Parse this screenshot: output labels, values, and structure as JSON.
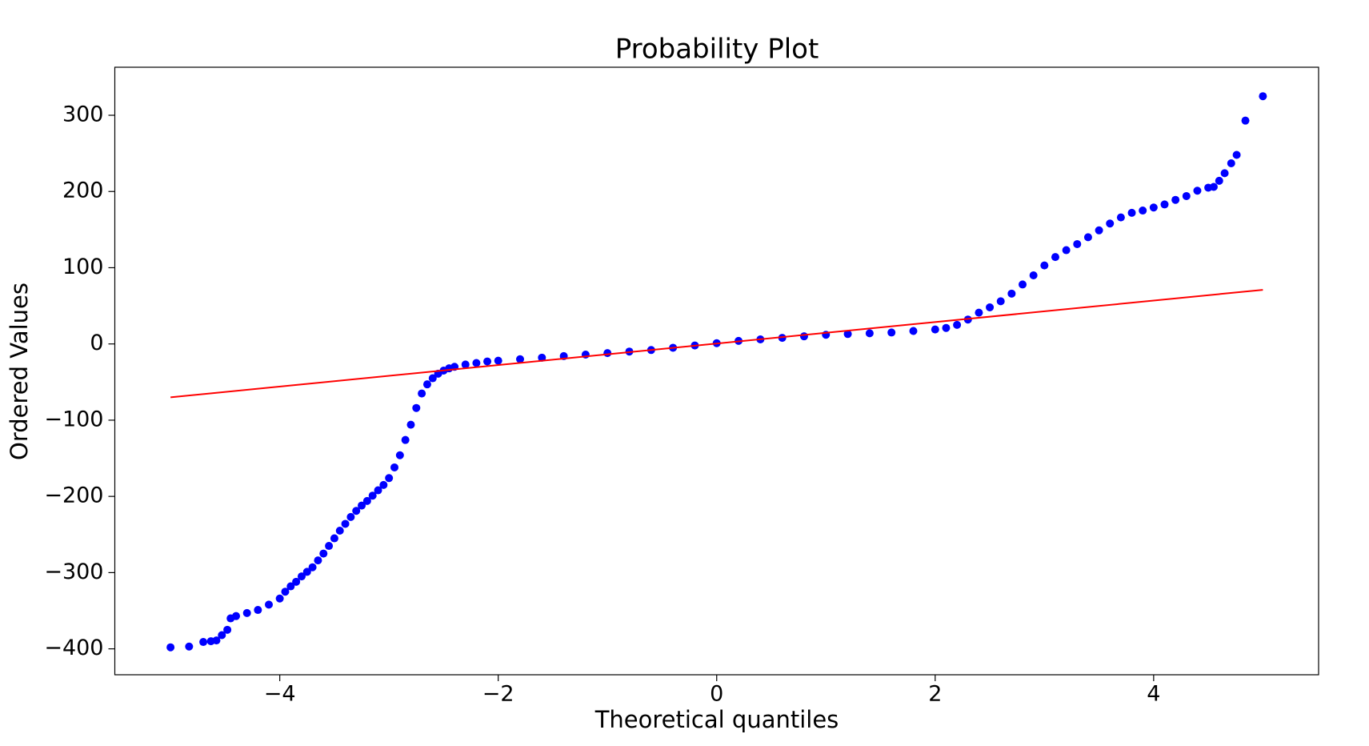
{
  "chart_data": {
    "type": "scatter",
    "title": "Probability Plot",
    "xlabel": "Theoretical quantiles",
    "ylabel": "Ordered Values",
    "xlim": [
      -5.51,
      5.51
    ],
    "ylim": [
      -434,
      363
    ],
    "xticks": [
      {
        "value": -4,
        "label": "−4"
      },
      {
        "value": -2,
        "label": "−2"
      },
      0,
      2,
      4
    ],
    "yticks": [
      {
        "value": -400,
        "label": "−400"
      },
      {
        "value": -300,
        "label": "−300"
      },
      {
        "value": -200,
        "label": "−200"
      },
      {
        "value": -100,
        "label": "−100"
      },
      0,
      100,
      200,
      300
    ],
    "grid": false,
    "series": [
      {
        "mode": "markers",
        "color": "#0000ff",
        "x": [
          -5.0,
          -4.83,
          -4.7,
          -4.63,
          -4.58,
          -4.53,
          -4.48,
          -4.45,
          -4.4,
          -4.3,
          -4.2,
          -4.1,
          -4.0,
          -3.95,
          -3.9,
          -3.85,
          -3.8,
          -3.75,
          -3.7,
          -3.65,
          -3.6,
          -3.55,
          -3.5,
          -3.45,
          -3.4,
          -3.35,
          -3.3,
          -3.25,
          -3.2,
          -3.15,
          -3.1,
          -3.05,
          -3.0,
          -2.95,
          -2.9,
          -2.85,
          -2.8,
          -2.75,
          -2.7,
          -2.65,
          -2.6,
          -2.55,
          -2.5,
          -2.45,
          -2.4,
          -2.3,
          -2.2,
          -2.1,
          -2.0,
          -1.8,
          -1.6,
          -1.4,
          -1.2,
          -1.0,
          -0.8,
          -0.6,
          -0.4,
          -0.2,
          0.0,
          0.2,
          0.4,
          0.6,
          0.8,
          1.0,
          1.2,
          1.4,
          1.6,
          1.8,
          2.0,
          2.1,
          2.2,
          2.3,
          2.4,
          2.5,
          2.6,
          2.7,
          2.8,
          2.9,
          3.0,
          3.1,
          3.2,
          3.3,
          3.4,
          3.5,
          3.6,
          3.7,
          3.8,
          3.9,
          4.0,
          4.1,
          4.2,
          4.3,
          4.4,
          4.5,
          4.55,
          4.6,
          4.65,
          4.71,
          4.76,
          4.84,
          5.0
        ],
        "values": [
          -398,
          -397,
          -391,
          -390,
          -389,
          -382,
          -375,
          -360,
          -357,
          -353,
          -349,
          -342,
          -334,
          -325,
          -318,
          -312,
          -305,
          -299,
          -293,
          -284,
          -275,
          -265,
          -255,
          -245,
          -236,
          -227,
          -219,
          -212,
          -206,
          -199,
          -192,
          -185,
          -176,
          -162,
          -146,
          -126,
          -106,
          -84,
          -65,
          -53,
          -45,
          -39,
          -35,
          -32,
          -30,
          -27,
          -25,
          -23,
          -22,
          -20,
          -18,
          -16,
          -14,
          -12,
          -10,
          -8,
          -5,
          -2,
          1,
          4,
          6,
          8,
          10,
          12,
          13,
          14,
          15,
          17,
          19,
          21,
          25,
          32,
          41,
          48,
          56,
          66,
          78,
          90,
          103,
          114,
          123,
          131,
          140,
          149,
          158,
          166,
          172,
          175,
          179,
          183,
          189,
          194,
          201,
          205,
          206,
          214,
          224,
          237,
          248,
          293,
          325
        ]
      },
      {
        "mode": "line",
        "color": "#ff0000",
        "x": [
          -5.0,
          5.0
        ],
        "values": [
          -70,
          71
        ]
      }
    ]
  }
}
